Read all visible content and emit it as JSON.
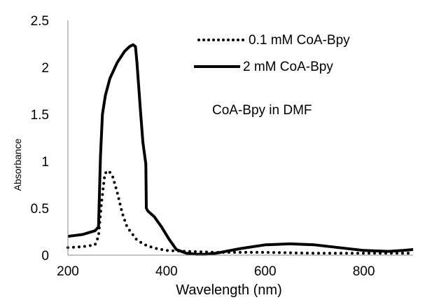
{
  "chart_data": {
    "type": "line",
    "title": "",
    "xlabel": "Wavelength (nm)",
    "ylabel": "Absorbance",
    "xlim": [
      200,
      900
    ],
    "ylim": [
      0,
      2.5
    ],
    "x_ticks": [
      "200",
      "400",
      "600",
      "800"
    ],
    "y_ticks": [
      "0",
      "0.5",
      "1",
      "1.5",
      "2",
      "2.5"
    ],
    "grid": false,
    "legend_position": "top-right",
    "annotation": "CoA-Bpy in DMF",
    "series": [
      {
        "name": "0.1 mM CoA-Bpy",
        "style": "dotted",
        "color": "#000000",
        "x": [
          200,
          230,
          255,
          262,
          268,
          275,
          282,
          290,
          300,
          310,
          320,
          340,
          360,
          380,
          400,
          440,
          500,
          600,
          700,
          800,
          900
        ],
        "y": [
          0.08,
          0.09,
          0.11,
          0.2,
          0.55,
          0.87,
          0.9,
          0.85,
          0.67,
          0.45,
          0.3,
          0.16,
          0.1,
          0.07,
          0.05,
          0.04,
          0.03,
          0.03,
          0.02,
          0.02,
          0.02
        ]
      },
      {
        "name": "2 mM CoA-Bpy",
        "style": "solid",
        "color": "#000000",
        "x": [
          200,
          230,
          255,
          262,
          266,
          270,
          276,
          285,
          300,
          315,
          325,
          332,
          337,
          340,
          347,
          352,
          358,
          359,
          362,
          375,
          390,
          405,
          420,
          440,
          460,
          480,
          500,
          550,
          600,
          650,
          700,
          750,
          800,
          850,
          880,
          900
        ],
        "y": [
          0.2,
          0.22,
          0.26,
          0.3,
          1.05,
          1.5,
          1.7,
          1.88,
          2.05,
          2.17,
          2.22,
          2.24,
          2.22,
          2.05,
          1.55,
          1.2,
          0.97,
          0.5,
          0.47,
          0.41,
          0.3,
          0.17,
          0.06,
          0.02,
          0.01,
          0.01,
          0.02,
          0.07,
          0.11,
          0.12,
          0.11,
          0.08,
          0.05,
          0.04,
          0.05,
          0.06
        ]
      }
    ]
  }
}
